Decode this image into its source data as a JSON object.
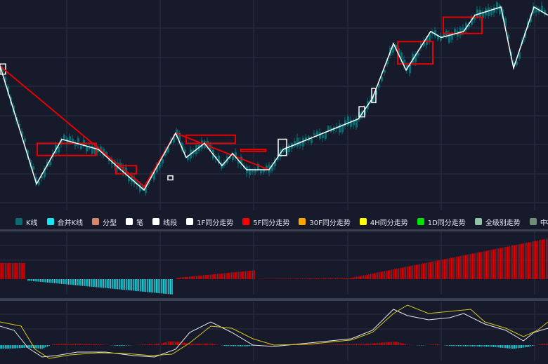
{
  "chart_data": {
    "type": "line",
    "legend": {
      "placement": "bottom-of-main-panel",
      "items": [
        {
          "label": "K线",
          "color": "#0e6a72"
        },
        {
          "label": "合并K线",
          "color": "#15e6f0"
        },
        {
          "label": "分型",
          "color": "#d2876a"
        },
        {
          "label": "笔",
          "color": "#ffffff"
        },
        {
          "label": "线段",
          "color": "#ffffff"
        },
        {
          "label": "1F同分走势",
          "color": "#ffffff"
        },
        {
          "label": "5F同分走势",
          "color": "#ff0000"
        },
        {
          "label": "30F同分走势",
          "color": "#ffa500"
        },
        {
          "label": "4H同分走势",
          "color": "#ffff00"
        },
        {
          "label": "1D同分走势",
          "color": "#00e400"
        },
        {
          "label": "全级别走势",
          "color": "#8ec3a6"
        },
        {
          "label": "中枢",
          "color": "#6f8d76"
        }
      ]
    },
    "colors": {
      "background": "#161a2b",
      "grid": "#2b3044",
      "candle": "#0e6a72",
      "bi": "#ffffff",
      "segment": "#e60000",
      "zhongshu": "#e60000",
      "macd_up": "#e60000",
      "macd_down": "#15e6f0",
      "dif": "#e8e8e8",
      "dea": "#d6c81a"
    },
    "price_range": [
      0,
      100
    ],
    "x_range": [
      0,
      780
    ],
    "bi": [
      [
        0,
        71
      ],
      [
        52,
        13
      ],
      [
        88,
        35
      ],
      [
        140,
        30
      ],
      [
        172,
        20
      ],
      [
        205,
        10
      ],
      [
        250,
        38
      ],
      [
        265,
        26
      ],
      [
        291,
        33
      ],
      [
        316,
        22
      ],
      [
        331,
        28
      ],
      [
        351,
        20
      ],
      [
        383,
        20
      ],
      [
        403,
        30
      ],
      [
        510,
        45
      ],
      [
        530,
        55
      ],
      [
        560,
        82
      ],
      [
        578,
        69
      ],
      [
        613,
        88
      ],
      [
        628,
        85
      ],
      [
        660,
        88
      ],
      [
        676,
        96
      ],
      [
        713,
        100
      ],
      [
        731,
        70
      ],
      [
        760,
        100
      ],
      [
        780,
        96
      ]
    ],
    "segments": [
      [
        [
          0,
          71
        ],
        [
          208,
          11
        ]
      ],
      [
        [
          204,
          11
        ],
        [
          250,
          38
        ]
      ],
      [
        [
          250,
          38
        ],
        [
          383,
          20
        ]
      ]
    ],
    "zhongshu": [
      {
        "x0": 53,
        "x1": 137,
        "y_low": 27,
        "y_high": 33
      },
      {
        "x0": 165,
        "x1": 194,
        "y_low": 18,
        "y_high": 22
      },
      {
        "x0": 265,
        "x1": 335,
        "y_low": 33,
        "y_high": 37
      },
      {
        "x0": 343,
        "x1": 378,
        "y_low": 29,
        "y_high": 30
      },
      {
        "x0": 566,
        "x1": 616,
        "y_low": 72,
        "y_high": 83
      },
      {
        "x0": 631,
        "x1": 686,
        "y_low": 87,
        "y_high": 95
      }
    ],
    "boxes": [
      {
        "x0": 0,
        "x1": 8,
        "y_low": 67,
        "y_high": 72
      },
      {
        "x0": 239,
        "x1": 246,
        "y_low": 15,
        "y_high": 17
      },
      {
        "x0": 396,
        "x1": 408,
        "y_low": 27,
        "y_high": 35
      },
      {
        "x0": 511,
        "x1": 519,
        "y_low": 46,
        "y_high": 51
      },
      {
        "x0": 529,
        "x1": 535,
        "y_low": 53,
        "y_high": 60
      }
    ],
    "macd_hist": {
      "segments": [
        {
          "x0": 0,
          "x1": 36,
          "v0": 60,
          "v1": 60
        },
        {
          "x0": 40,
          "x1": 247,
          "v0": -10,
          "v1": -100
        },
        {
          "x0": 252,
          "x1": 363,
          "v0": 5,
          "v1": 33
        },
        {
          "x0": 368,
          "x1": 500,
          "v0": 1,
          "v1": 4
        },
        {
          "x0": 500,
          "x1": 780,
          "v0": 5,
          "v1": 150
        }
      ],
      "range": [
        -100,
        150
      ]
    },
    "macd_osc": {
      "range": [
        -1,
        1
      ],
      "dif": [
        [
          0,
          0.45
        ],
        [
          20,
          0.35
        ],
        [
          40,
          -0.2
        ],
        [
          60,
          -0.85
        ],
        [
          80,
          -0.75
        ],
        [
          110,
          -0.5
        ],
        [
          150,
          -0.5
        ],
        [
          190,
          -0.75
        ],
        [
          220,
          -0.85
        ],
        [
          250,
          -0.3
        ],
        [
          270,
          0.3
        ],
        [
          300,
          0.55
        ],
        [
          330,
          0.3
        ],
        [
          360,
          0.0
        ],
        [
          390,
          -0.1
        ],
        [
          440,
          0.05
        ],
        [
          500,
          0.15
        ],
        [
          530,
          0.35
        ],
        [
          560,
          0.85
        ],
        [
          580,
          0.7
        ],
        [
          610,
          0.6
        ],
        [
          640,
          0.65
        ],
        [
          660,
          0.75
        ],
        [
          690,
          0.5
        ],
        [
          720,
          0.35
        ],
        [
          745,
          0.1
        ],
        [
          760,
          0.3
        ],
        [
          780,
          0.4
        ]
      ],
      "dea": [
        [
          0,
          0.55
        ],
        [
          30,
          0.45
        ],
        [
          50,
          -0.3
        ],
        [
          70,
          -0.95
        ],
        [
          100,
          -0.7
        ],
        [
          140,
          -0.55
        ],
        [
          180,
          -0.6
        ],
        [
          215,
          -0.75
        ],
        [
          245,
          -0.65
        ],
        [
          270,
          0.05
        ],
        [
          300,
          0.45
        ],
        [
          330,
          0.4
        ],
        [
          360,
          0.15
        ],
        [
          390,
          0.0
        ],
        [
          440,
          0.02
        ],
        [
          500,
          0.12
        ],
        [
          530,
          0.3
        ],
        [
          560,
          0.75
        ],
        [
          580,
          0.95
        ],
        [
          610,
          0.75
        ],
        [
          640,
          0.8
        ],
        [
          670,
          0.85
        ],
        [
          690,
          0.55
        ],
        [
          720,
          0.4
        ],
        [
          745,
          0.2
        ],
        [
          765,
          0.35
        ],
        [
          780,
          0.55
        ]
      ],
      "hist": [
        [
          0,
          -0.45
        ],
        [
          20,
          -0.4
        ],
        [
          40,
          -0.3
        ],
        [
          60,
          -0.45
        ],
        [
          75,
          0.1
        ],
        [
          100,
          0.15
        ],
        [
          140,
          0.1
        ],
        [
          170,
          -0.1
        ],
        [
          200,
          0.05
        ],
        [
          230,
          0.2
        ],
        [
          240,
          0.45
        ],
        [
          255,
          0.4
        ],
        [
          270,
          0.15
        ],
        [
          300,
          0.2
        ],
        [
          320,
          -0.1
        ],
        [
          350,
          -0.15
        ],
        [
          380,
          0.05
        ],
        [
          420,
          0.05
        ],
        [
          460,
          0.05
        ],
        [
          500,
          0.1
        ],
        [
          530,
          0.2
        ],
        [
          550,
          0.35
        ],
        [
          565,
          0.4
        ],
        [
          580,
          0.05
        ],
        [
          600,
          -0.05
        ],
        [
          620,
          0.1
        ],
        [
          640,
          -0.1
        ],
        [
          670,
          -0.15
        ],
        [
          700,
          -0.2
        ],
        [
          730,
          -0.45
        ],
        [
          750,
          -0.25
        ],
        [
          765,
          0.05
        ],
        [
          780,
          0.2
        ]
      ]
    }
  }
}
